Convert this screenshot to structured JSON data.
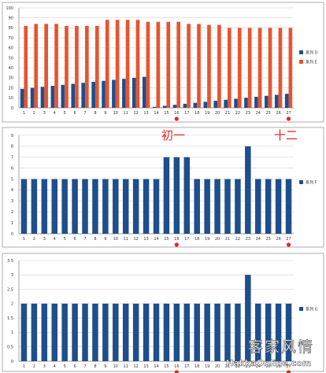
{
  "chart_data": [
    {
      "type": "bar",
      "categories": [
        "1",
        "2",
        "3",
        "4",
        "5",
        "6",
        "7",
        "8",
        "9",
        "10",
        "11",
        "12",
        "13",
        "14",
        "15",
        "16",
        "17",
        "18",
        "19",
        "20",
        "21",
        "22",
        "23",
        "24",
        "25",
        "26",
        "27"
      ],
      "series": [
        {
          "name": "系列 D",
          "color": "#1f4e8c",
          "values": [
            19,
            20,
            21,
            22,
            23,
            24,
            25,
            26,
            27,
            28,
            29,
            30,
            31,
            1,
            2,
            3,
            4,
            5,
            6,
            7,
            8,
            9,
            10,
            11,
            12,
            13,
            14
          ]
        },
        {
          "name": "系列 E",
          "color": "#e8532f",
          "values": [
            82,
            84,
            84,
            84,
            82,
            82,
            82,
            82,
            88,
            88,
            88,
            88,
            86,
            86,
            86,
            86,
            84,
            84,
            83,
            83,
            80,
            80,
            80,
            80,
            80,
            80,
            80
          ]
        }
      ],
      "ylim": [
        0,
        100
      ],
      "yticks": [
        "0",
        "10",
        "20",
        "30",
        "40",
        "50",
        "60",
        "70",
        "80",
        "90",
        "100"
      ],
      "grid": true,
      "legend": "right"
    },
    {
      "type": "bar",
      "categories": [
        "1",
        "2",
        "3",
        "4",
        "5",
        "6",
        "7",
        "8",
        "9",
        "10",
        "11",
        "12",
        "13",
        "14",
        "15",
        "16",
        "17",
        "18",
        "19",
        "20",
        "21",
        "22",
        "23",
        "24",
        "25",
        "26",
        "27"
      ],
      "series": [
        {
          "name": "系列 F",
          "color": "#1f4e8c",
          "values": [
            5,
            5,
            5,
            5,
            5,
            5,
            5,
            5,
            5,
            5,
            5,
            5,
            5,
            5,
            7,
            7,
            7,
            5,
            5,
            5,
            5,
            5,
            8,
            5,
            5,
            5,
            5
          ]
        }
      ],
      "ylim": [
        0,
        9
      ],
      "yticks": [
        "0",
        "1",
        "2",
        "3",
        "4",
        "5",
        "6",
        "7",
        "8",
        "9"
      ],
      "grid": true,
      "legend": "right"
    },
    {
      "type": "bar",
      "categories": [
        "1",
        "2",
        "3",
        "4",
        "5",
        "6",
        "7",
        "8",
        "9",
        "10",
        "11",
        "12",
        "13",
        "14",
        "15",
        "16",
        "17",
        "18",
        "19",
        "20",
        "21",
        "22",
        "23",
        "24",
        "25",
        "26",
        "27"
      ],
      "series": [
        {
          "name": "系列 G",
          "color": "#1f4e8c",
          "values": [
            2,
            2,
            2,
            2,
            2,
            2,
            2,
            2,
            2,
            2,
            2,
            2,
            2,
            2,
            2,
            2,
            2,
            2,
            2,
            2,
            2,
            2,
            3,
            2,
            2,
            2,
            2
          ]
        }
      ],
      "ylim": [
        0,
        3.5
      ],
      "yticks": [
        "0",
        "0.5",
        "1",
        "1.5",
        "2",
        "2.5",
        "3",
        "3.5"
      ],
      "grid": true,
      "legend": "right"
    }
  ],
  "annotations": {
    "first_day": "初一",
    "twelfth_day": "十二",
    "marker_color": "#e0281e",
    "marked_categories": [
      "16",
      "27"
    ]
  },
  "watermark": {
    "cjk": "客家风情",
    "site": "HakkaOnline.com"
  }
}
